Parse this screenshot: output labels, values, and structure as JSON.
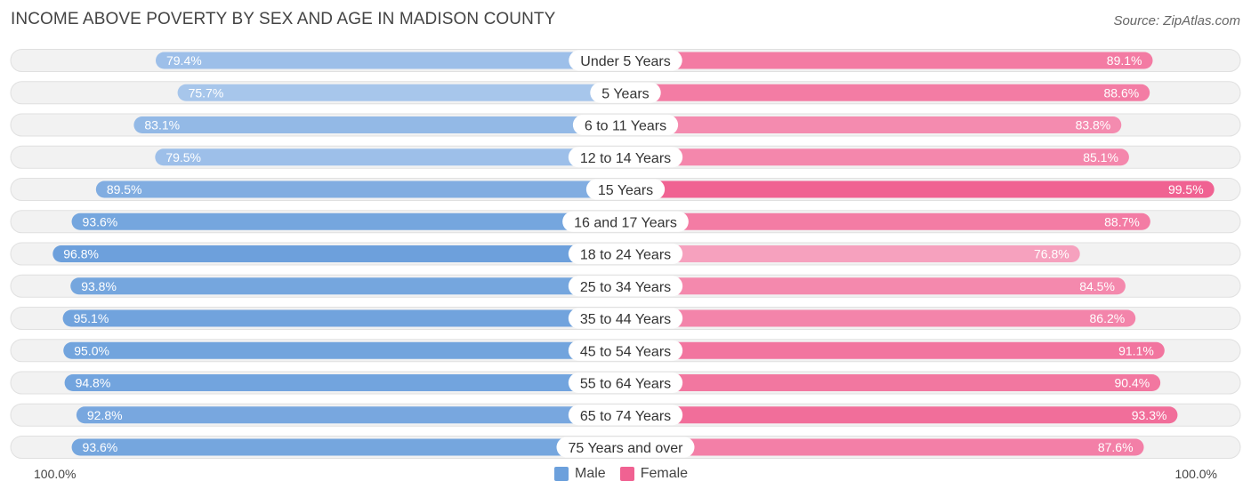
{
  "chart_data": {
    "type": "bar",
    "orientation": "horizontal-diverging",
    "title": "INCOME ABOVE POVERTY BY SEX AND AGE IN MADISON COUNTY",
    "source": "Source: ZipAtlas.com",
    "categories": [
      "Under 5 Years",
      "5 Years",
      "6 to 11 Years",
      "12 to 14 Years",
      "15 Years",
      "16 and 17 Years",
      "18 to 24 Years",
      "25 to 34 Years",
      "35 to 44 Years",
      "45 to 54 Years",
      "55 to 64 Years",
      "65 to 74 Years",
      "75 Years and over"
    ],
    "series": [
      {
        "name": "Male",
        "values": [
          79.4,
          75.7,
          83.1,
          79.5,
          89.5,
          93.6,
          96.8,
          93.8,
          95.1,
          95.0,
          94.8,
          92.8,
          93.6
        ],
        "labels": [
          "79.4%",
          "75.7%",
          "83.1%",
          "79.5%",
          "89.5%",
          "93.6%",
          "96.8%",
          "93.8%",
          "95.1%",
          "95.0%",
          "94.8%",
          "92.8%",
          "93.6%"
        ]
      },
      {
        "name": "Female",
        "values": [
          89.1,
          88.6,
          83.8,
          85.1,
          99.5,
          88.7,
          76.8,
          84.5,
          86.2,
          91.1,
          90.4,
          93.3,
          87.6
        ],
        "labels": [
          "89.1%",
          "88.6%",
          "83.8%",
          "85.1%",
          "99.5%",
          "88.7%",
          "76.8%",
          "84.5%",
          "86.2%",
          "91.1%",
          "90.4%",
          "93.3%",
          "87.6%"
        ]
      }
    ],
    "axis_left_label": "100.0%",
    "axis_right_label": "100.0%",
    "xlim": [
      0,
      100
    ],
    "legend_position": "bottom-center",
    "colors": {
      "male": "#6ca0dc",
      "male_light": "#a9c7ec",
      "female": "#f06292",
      "female_light": "#f7a7c2"
    }
  }
}
